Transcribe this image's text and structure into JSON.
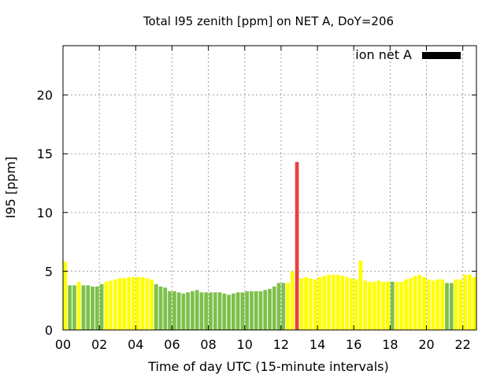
{
  "chart_data": {
    "type": "bar",
    "title": "Total I95 zenith [ppm] on NET A, DoY=206",
    "xlabel": "Time of day UTC (15-minute intervals)",
    "ylabel": "I95 [ppm]",
    "xlim": [
      0,
      22.75
    ],
    "ylim": [
      0,
      24.2
    ],
    "x_ticks": [
      "00",
      "02",
      "04",
      "06",
      "08",
      "10",
      "12",
      "14",
      "16",
      "18",
      "20",
      "22"
    ],
    "x_tick_values": [
      0,
      2,
      4,
      6,
      8,
      10,
      12,
      14,
      16,
      18,
      20,
      22
    ],
    "y_ticks": [
      "0",
      "5",
      "10",
      "15",
      "20"
    ],
    "y_tick_values": [
      0,
      5,
      10,
      15,
      20
    ],
    "grid": true,
    "legend": {
      "position": "top-right",
      "entries": [
        {
          "label": "ion net A",
          "color": "#000000"
        }
      ]
    },
    "interval_hours": 0.25,
    "colors": {
      "green": "#7dc04a",
      "yellow": "#ffff00",
      "red": "#e84242"
    },
    "bars": [
      {
        "x": 0.0,
        "value": 5.8,
        "color": "yellow"
      },
      {
        "x": 0.25,
        "value": 3.8,
        "color": "green"
      },
      {
        "x": 0.5,
        "value": 3.8,
        "color": "green"
      },
      {
        "x": 0.75,
        "value": 4.1,
        "color": "yellow"
      },
      {
        "x": 1.0,
        "value": 3.8,
        "color": "green"
      },
      {
        "x": 1.25,
        "value": 3.8,
        "color": "green"
      },
      {
        "x": 1.5,
        "value": 3.7,
        "color": "green"
      },
      {
        "x": 1.75,
        "value": 3.7,
        "color": "green"
      },
      {
        "x": 2.0,
        "value": 3.9,
        "color": "green"
      },
      {
        "x": 2.25,
        "value": 4.1,
        "color": "yellow"
      },
      {
        "x": 2.5,
        "value": 4.2,
        "color": "yellow"
      },
      {
        "x": 2.75,
        "value": 4.3,
        "color": "yellow"
      },
      {
        "x": 3.0,
        "value": 4.4,
        "color": "yellow"
      },
      {
        "x": 3.25,
        "value": 4.4,
        "color": "yellow"
      },
      {
        "x": 3.5,
        "value": 4.5,
        "color": "yellow"
      },
      {
        "x": 3.75,
        "value": 4.5,
        "color": "yellow"
      },
      {
        "x": 4.0,
        "value": 4.5,
        "color": "yellow"
      },
      {
        "x": 4.25,
        "value": 4.5,
        "color": "yellow"
      },
      {
        "x": 4.5,
        "value": 4.4,
        "color": "yellow"
      },
      {
        "x": 4.75,
        "value": 4.3,
        "color": "yellow"
      },
      {
        "x": 5.0,
        "value": 3.9,
        "color": "green"
      },
      {
        "x": 5.25,
        "value": 3.7,
        "color": "green"
      },
      {
        "x": 5.5,
        "value": 3.6,
        "color": "green"
      },
      {
        "x": 5.75,
        "value": 3.3,
        "color": "green"
      },
      {
        "x": 6.0,
        "value": 3.3,
        "color": "green"
      },
      {
        "x": 6.25,
        "value": 3.2,
        "color": "green"
      },
      {
        "x": 6.5,
        "value": 3.1,
        "color": "green"
      },
      {
        "x": 6.75,
        "value": 3.2,
        "color": "green"
      },
      {
        "x": 7.0,
        "value": 3.3,
        "color": "green"
      },
      {
        "x": 7.25,
        "value": 3.4,
        "color": "green"
      },
      {
        "x": 7.5,
        "value": 3.2,
        "color": "green"
      },
      {
        "x": 7.75,
        "value": 3.2,
        "color": "green"
      },
      {
        "x": 8.0,
        "value": 3.2,
        "color": "green"
      },
      {
        "x": 8.25,
        "value": 3.2,
        "color": "green"
      },
      {
        "x": 8.5,
        "value": 3.2,
        "color": "green"
      },
      {
        "x": 8.75,
        "value": 3.1,
        "color": "green"
      },
      {
        "x": 9.0,
        "value": 3.0,
        "color": "green"
      },
      {
        "x": 9.25,
        "value": 3.1,
        "color": "green"
      },
      {
        "x": 9.5,
        "value": 3.2,
        "color": "green"
      },
      {
        "x": 9.75,
        "value": 3.2,
        "color": "green"
      },
      {
        "x": 10.0,
        "value": 3.3,
        "color": "green"
      },
      {
        "x": 10.25,
        "value": 3.3,
        "color": "green"
      },
      {
        "x": 10.5,
        "value": 3.3,
        "color": "green"
      },
      {
        "x": 10.75,
        "value": 3.3,
        "color": "green"
      },
      {
        "x": 11.0,
        "value": 3.4,
        "color": "green"
      },
      {
        "x": 11.25,
        "value": 3.5,
        "color": "green"
      },
      {
        "x": 11.5,
        "value": 3.7,
        "color": "green"
      },
      {
        "x": 11.75,
        "value": 4.0,
        "color": "green"
      },
      {
        "x": 12.0,
        "value": 4.0,
        "color": "green"
      },
      {
        "x": 12.25,
        "value": 4.0,
        "color": "yellow"
      },
      {
        "x": 12.5,
        "value": 5.0,
        "color": "yellow"
      },
      {
        "x": 12.75,
        "value": 14.3,
        "color": "red"
      },
      {
        "x": 13.0,
        "value": 4.4,
        "color": "yellow"
      },
      {
        "x": 13.25,
        "value": 4.5,
        "color": "yellow"
      },
      {
        "x": 13.5,
        "value": 4.4,
        "color": "yellow"
      },
      {
        "x": 13.75,
        "value": 4.3,
        "color": "yellow"
      },
      {
        "x": 14.0,
        "value": 4.5,
        "color": "yellow"
      },
      {
        "x": 14.25,
        "value": 4.6,
        "color": "yellow"
      },
      {
        "x": 14.5,
        "value": 4.7,
        "color": "yellow"
      },
      {
        "x": 14.75,
        "value": 4.7,
        "color": "yellow"
      },
      {
        "x": 15.0,
        "value": 4.7,
        "color": "yellow"
      },
      {
        "x": 15.25,
        "value": 4.6,
        "color": "yellow"
      },
      {
        "x": 15.5,
        "value": 4.5,
        "color": "yellow"
      },
      {
        "x": 15.75,
        "value": 4.4,
        "color": "yellow"
      },
      {
        "x": 16.0,
        "value": 4.3,
        "color": "yellow"
      },
      {
        "x": 16.25,
        "value": 5.9,
        "color": "yellow"
      },
      {
        "x": 16.5,
        "value": 4.2,
        "color": "yellow"
      },
      {
        "x": 16.75,
        "value": 4.1,
        "color": "yellow"
      },
      {
        "x": 17.0,
        "value": 4.1,
        "color": "yellow"
      },
      {
        "x": 17.25,
        "value": 4.2,
        "color": "yellow"
      },
      {
        "x": 17.5,
        "value": 4.1,
        "color": "yellow"
      },
      {
        "x": 17.75,
        "value": 4.1,
        "color": "yellow"
      },
      {
        "x": 18.0,
        "value": 4.1,
        "color": "green"
      },
      {
        "x": 18.25,
        "value": 4.1,
        "color": "yellow"
      },
      {
        "x": 18.5,
        "value": 4.1,
        "color": "yellow"
      },
      {
        "x": 18.75,
        "value": 4.3,
        "color": "yellow"
      },
      {
        "x": 19.0,
        "value": 4.4,
        "color": "yellow"
      },
      {
        "x": 19.25,
        "value": 4.6,
        "color": "yellow"
      },
      {
        "x": 19.5,
        "value": 4.7,
        "color": "yellow"
      },
      {
        "x": 19.75,
        "value": 4.5,
        "color": "yellow"
      },
      {
        "x": 20.0,
        "value": 4.3,
        "color": "yellow"
      },
      {
        "x": 20.25,
        "value": 4.2,
        "color": "yellow"
      },
      {
        "x": 20.5,
        "value": 4.3,
        "color": "yellow"
      },
      {
        "x": 20.75,
        "value": 4.3,
        "color": "yellow"
      },
      {
        "x": 21.0,
        "value": 4.0,
        "color": "green"
      },
      {
        "x": 21.25,
        "value": 4.0,
        "color": "green"
      },
      {
        "x": 21.5,
        "value": 4.3,
        "color": "yellow"
      },
      {
        "x": 21.75,
        "value": 4.3,
        "color": "yellow"
      },
      {
        "x": 22.0,
        "value": 4.7,
        "color": "yellow"
      },
      {
        "x": 22.25,
        "value": 4.7,
        "color": "yellow"
      },
      {
        "x": 22.5,
        "value": 4.5,
        "color": "yellow"
      }
    ]
  }
}
